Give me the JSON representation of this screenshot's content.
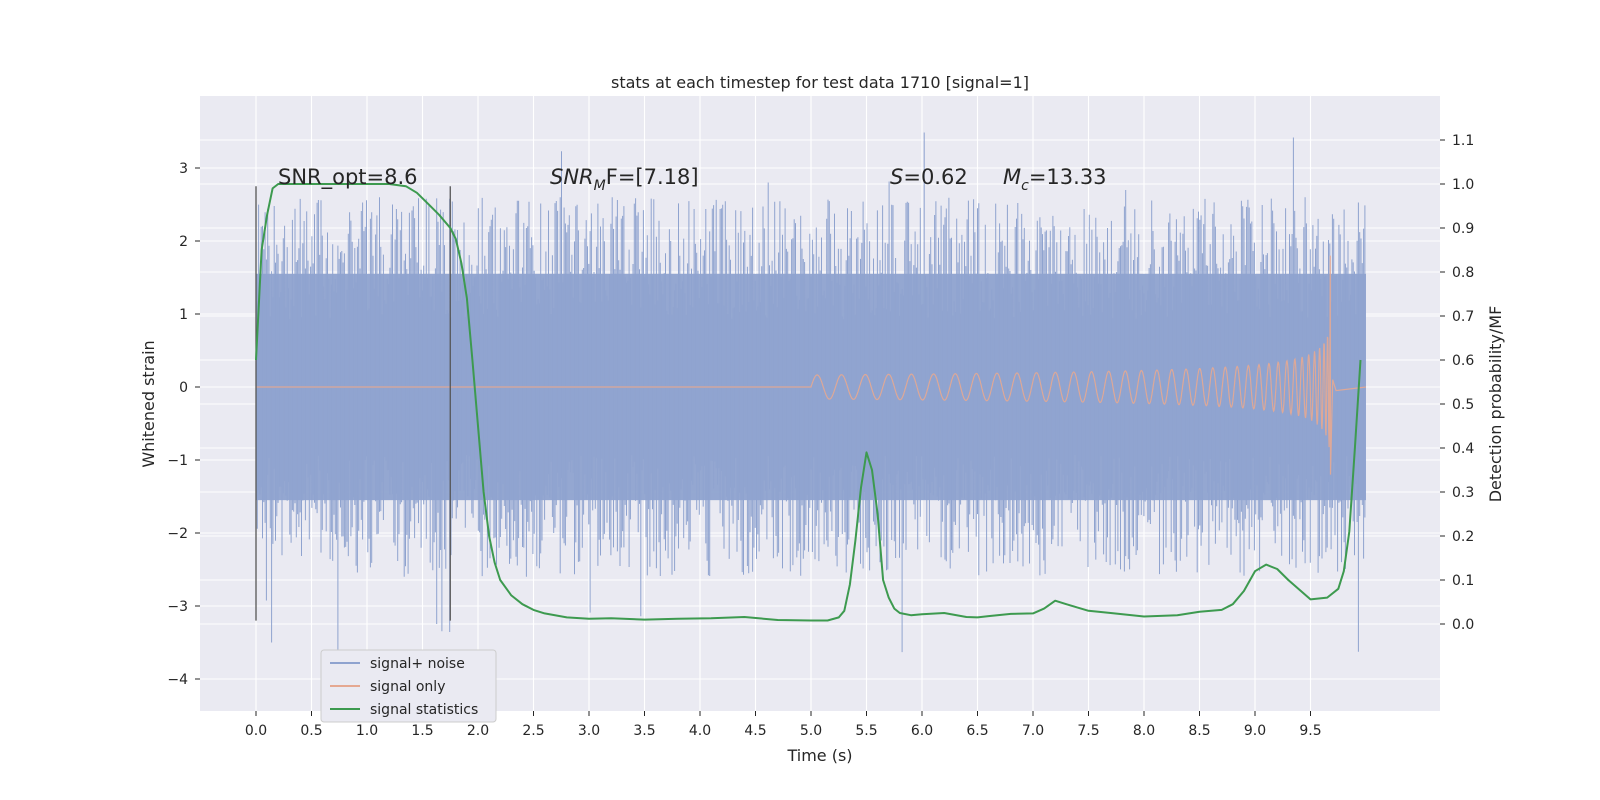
{
  "chart_data": {
    "type": "line",
    "title": "stats at each timestep for test data 1710 [signal=1]",
    "xlabel": "Time (s)",
    "ylabel_left": "Whitened strain",
    "ylabel_right": "Detection probability/MF",
    "xlim": [
      -0.5,
      10.5
    ],
    "ylim_left": [
      -4.5,
      3.9
    ],
    "ylim_right": [
      -0.2,
      1.2
    ],
    "x_ticks": [
      "0.0",
      "0.5",
      "1.0",
      "1.5",
      "2.0",
      "2.5",
      "3.0",
      "3.5",
      "4.0",
      "4.5",
      "5.0",
      "5.5",
      "6.0",
      "6.5",
      "7.0",
      "7.5",
      "8.0",
      "8.5",
      "9.0",
      "9.5"
    ],
    "y_ticks_left": [
      "3",
      "2",
      "1",
      "0",
      "−1",
      "−2",
      "−3",
      "−4"
    ],
    "y_ticks_right": [
      "1.1",
      "1.0",
      "0.9",
      "0.8",
      "0.7",
      "0.6",
      "0.5",
      "0.4",
      "0.3",
      "0.2",
      "0.1",
      "0.0"
    ],
    "grid": true,
    "legend_placement": "lower-left",
    "annotations": {
      "snr_opt": "SNR_opt=8.6",
      "snr_mf_main": "SNR",
      "snr_mf_sub": "M",
      "snr_mf_tail": "F=[7.18]",
      "s_label": "S",
      "s_value": "=0.62",
      "mc_main": "M",
      "mc_sub": "c",
      "mc_value": "=13.33"
    },
    "markers": {
      "x": [
        0.0,
        1.75
      ],
      "y_range": [
        -3.2,
        2.75
      ]
    },
    "series": [
      {
        "name": "signal+ noise",
        "color": "#8fa3cf",
        "envelope": {
          "x": [
            0.0,
            10.0
          ],
          "band_high": 1.55,
          "band_low": -1.55,
          "typical_peak": 2.6,
          "max_peak": 3.55,
          "min_trough": -3.7
        }
      },
      {
        "name": "signal only",
        "color": "#e5a891",
        "chirp": {
          "start_x": 5.0,
          "merger_x": 9.68,
          "end_x": 10.0,
          "start_amplitude": 0.02,
          "peak_amplitude_upper": 1.8,
          "peak_amplitude_lower": -1.2
        }
      },
      {
        "name": "signal statistics",
        "color": "#3d9a4f",
        "x": [
          0.0,
          0.05,
          0.1,
          0.15,
          0.2,
          0.4,
          0.6,
          0.8,
          1.0,
          1.2,
          1.35,
          1.45,
          1.55,
          1.65,
          1.75,
          1.8,
          1.85,
          1.9,
          1.95,
          2.0,
          2.05,
          2.1,
          2.15,
          2.2,
          2.3,
          2.4,
          2.5,
          2.6,
          2.8,
          3.0,
          3.2,
          3.5,
          3.8,
          4.1,
          4.4,
          4.7,
          5.0,
          5.15,
          5.25,
          5.3,
          5.35,
          5.4,
          5.45,
          5.5,
          5.55,
          5.6,
          5.65,
          5.7,
          5.75,
          5.8,
          5.9,
          6.0,
          6.2,
          6.4,
          6.5,
          6.6,
          6.8,
          7.0,
          7.1,
          7.2,
          7.3,
          7.5,
          7.7,
          8.0,
          8.3,
          8.5,
          8.7,
          8.8,
          8.9,
          9.0,
          9.1,
          9.2,
          9.3,
          9.5,
          9.65,
          9.75,
          9.8,
          9.85,
          9.9,
          9.95
        ],
        "y": [
          0.6,
          0.85,
          0.93,
          0.99,
          1.0,
          1.0,
          1.0,
          1.0,
          1.0,
          1.0,
          0.995,
          0.98,
          0.955,
          0.93,
          0.9,
          0.875,
          0.82,
          0.74,
          0.6,
          0.45,
          0.3,
          0.2,
          0.14,
          0.1,
          0.065,
          0.045,
          0.032,
          0.024,
          0.015,
          0.012,
          0.013,
          0.01,
          0.012,
          0.013,
          0.016,
          0.009,
          0.008,
          0.008,
          0.015,
          0.03,
          0.09,
          0.19,
          0.31,
          0.39,
          0.35,
          0.25,
          0.1,
          0.06,
          0.035,
          0.025,
          0.02,
          0.022,
          0.025,
          0.016,
          0.015,
          0.018,
          0.023,
          0.024,
          0.035,
          0.053,
          0.045,
          0.03,
          0.025,
          0.017,
          0.02,
          0.028,
          0.032,
          0.045,
          0.075,
          0.12,
          0.135,
          0.125,
          0.1,
          0.056,
          0.06,
          0.08,
          0.12,
          0.21,
          0.4,
          0.6
        ]
      }
    ]
  }
}
